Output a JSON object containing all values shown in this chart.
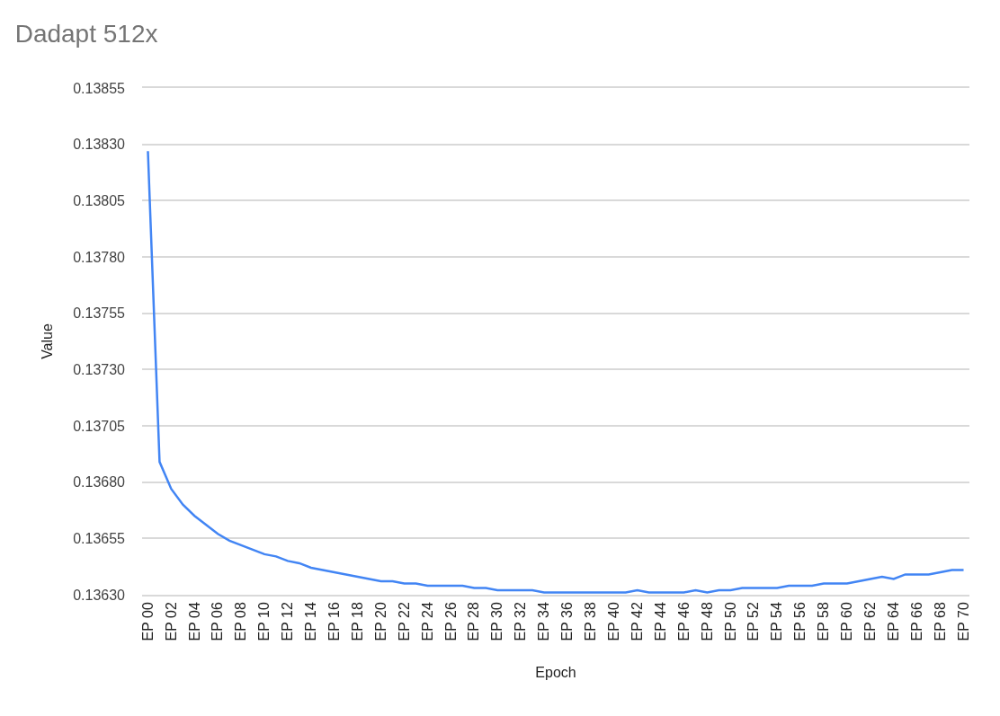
{
  "chart_data": {
    "type": "line",
    "title": "Dadapt 512x",
    "xlabel": "Epoch",
    "ylabel": "Value",
    "categories": [
      "EP 00",
      null,
      "EP 02",
      null,
      "EP 04",
      null,
      "EP 06",
      null,
      "EP 08",
      null,
      "EP 10",
      null,
      "EP 12",
      null,
      "EP 14",
      null,
      "EP 16",
      null,
      "EP 18",
      null,
      "EP 20",
      null,
      "EP 22",
      null,
      "EP 24",
      null,
      "EP 26",
      null,
      "EP 28",
      null,
      "EP 30",
      null,
      "EP 32",
      null,
      "EP 34",
      null,
      "EP 36",
      null,
      "EP 38",
      null,
      "EP 40",
      null,
      "EP 42",
      null,
      "EP 44",
      null,
      "EP 46",
      null,
      "EP 48",
      null,
      "EP 50",
      null,
      "EP 52",
      null,
      "EP 54",
      null,
      "EP 56",
      null,
      "EP 58",
      null,
      "EP 60",
      null,
      "EP 62",
      null,
      "EP 64",
      null,
      "EP 66",
      null,
      "EP 68",
      null,
      "EP 70"
    ],
    "series": [
      {
        "color": "#4285f4",
        "values": [
          0.13827,
          0.13689,
          0.13677,
          0.1367,
          0.13665,
          0.13661,
          0.13657,
          0.13654,
          0.13652,
          0.1365,
          0.13648,
          0.13647,
          0.13645,
          0.13644,
          0.13642,
          0.13641,
          0.1364,
          0.13639,
          0.13638,
          0.13637,
          0.13636,
          0.13636,
          0.13635,
          0.13635,
          0.13634,
          0.13634,
          0.13634,
          0.13634,
          0.13633,
          0.13633,
          0.13632,
          0.13632,
          0.13632,
          0.13632,
          0.13631,
          0.13631,
          0.13631,
          0.13631,
          0.13631,
          0.13631,
          0.13631,
          0.13631,
          0.13632,
          0.13631,
          0.13631,
          0.13631,
          0.13631,
          0.13632,
          0.13631,
          0.13632,
          0.13632,
          0.13633,
          0.13633,
          0.13633,
          0.13633,
          0.13634,
          0.13634,
          0.13634,
          0.13635,
          0.13635,
          0.13635,
          0.13636,
          0.13637,
          0.13638,
          0.13637,
          0.13639,
          0.13639,
          0.13639,
          0.1364,
          0.13641,
          0.13641
        ]
      }
    ],
    "ylim": [
      0.1363,
      0.13855
    ],
    "yticks": [
      {
        "value": 0.1363,
        "label": "0.13630"
      },
      {
        "value": 0.13655,
        "label": "0.13655"
      },
      {
        "value": 0.1368,
        "label": "0.13680"
      },
      {
        "value": 0.13705,
        "label": "0.13705"
      },
      {
        "value": 0.1373,
        "label": "0.13730"
      },
      {
        "value": 0.13755,
        "label": "0.13755"
      },
      {
        "value": 0.1378,
        "label": "0.13780"
      },
      {
        "value": 0.13805,
        "label": "0.13805"
      },
      {
        "value": 0.1383,
        "label": "0.13830"
      },
      {
        "value": 0.13855,
        "label": "0.13855"
      }
    ],
    "grid": "y",
    "marker": "none",
    "line_style": "solid"
  }
}
